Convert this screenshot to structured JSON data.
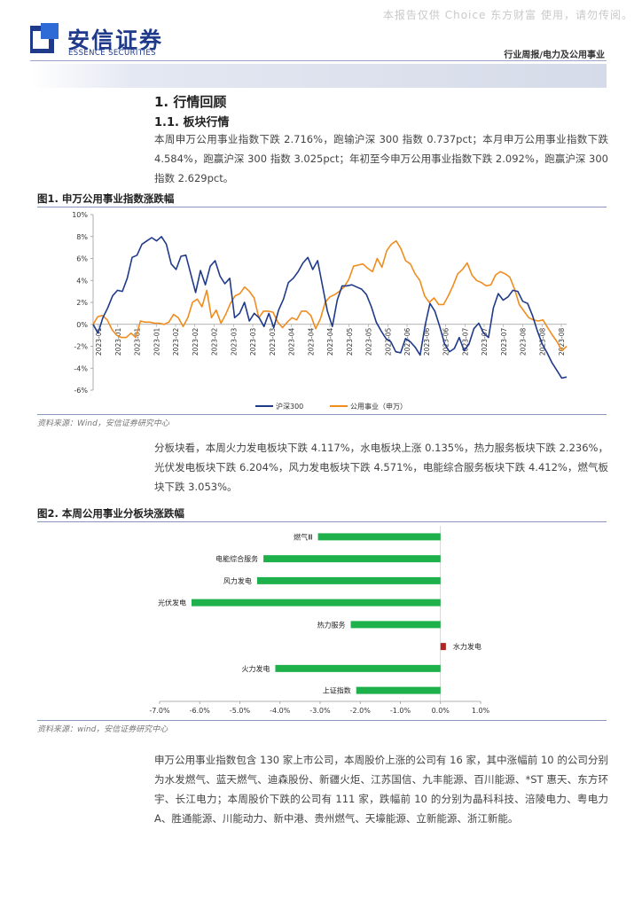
{
  "watermark": "本报告仅供 Choice 东方财富 使用，请勿传阅。",
  "header": {
    "logo_cn": "安信证券",
    "logo_en": "ESSENCE SECURITIES",
    "category": "行业周报/电力及公用事业",
    "brand_color": "#1f3a8a",
    "accent_color": "#2e6bd6"
  },
  "section": {
    "h1": "1. 行情回顾",
    "h2": "1.1. 板块行情",
    "para1": "本周申万公用事业指数下跌 2.716%，跑输沪深 300 指数 0.737pct；本月申万公用事业指数下跌 4.584%，跑赢沪深 300 指数 3.025pct；年初至今申万公用事业指数下跌 2.092%，跑赢沪深 300 指数 2.629pct。",
    "para2": "分板块看，本周火力发电板块下跌 4.117%，水电板块上涨 0.135%，热力服务板块下跌 2.236%，光伏发电板块下跌 6.204%，风力发电板块下跌 4.571%，电能综合服务板块下跌 4.412%，燃气板块下跌 3.053%。",
    "para3": "申万公用事业指数包含 130 家上市公司，本周股价上涨的公司有 16 家，其中涨幅前 10 的公司分别为水发燃气、蓝天燃气、迪森股份、新疆火炬、江苏国信、九丰能源、百川能源、*ST 惠天、东方环宇、长江电力；本周股价下跌的公司有 111 家，跌幅前 10 的分别为晶科科技、涪陵电力、粤电力 A、胜通能源、川能动力、新中港、贵州燃气、天壕能源、立新能源、浙江新能。"
  },
  "fig1": {
    "title": "图1. 申万公用事业指数涨跌幅",
    "source": "资料来源：Wind，安信证券研究中心"
  },
  "fig2": {
    "title": "图2. 本周公用事业分板块涨跌幅",
    "source": "资料来源：wind，安信证券研究中心"
  },
  "chart_data": [
    {
      "type": "line",
      "title": "申万公用事业指数涨跌幅",
      "ylim": [
        -6,
        10
      ],
      "yticks": [
        -6,
        -4,
        -2,
        0,
        2,
        4,
        6,
        8,
        10
      ],
      "ytick_labels": [
        "-6%",
        "-4%",
        "-2%",
        "0%",
        "2%",
        "4%",
        "6%",
        "8%",
        "10%"
      ],
      "x_tick_labels": [
        "2023-01",
        "2023-01",
        "2023-01",
        "2023-01",
        "2023-02",
        "2023-02",
        "2023-02",
        "2023-03",
        "2023-03",
        "2023-03",
        "2023-04",
        "2023-04",
        "2023-04",
        "2023-05",
        "2023-05",
        "2023-05",
        "2023-06",
        "2023-06",
        "2023-06",
        "2023-07",
        "2023-07",
        "2023-07",
        "2023-08",
        "2023-08",
        "2023-08"
      ],
      "series": [
        {
          "name": "沪深300",
          "color": "#1f3a8a",
          "values": [
            0,
            -0.8,
            0.6,
            1.5,
            2.6,
            3.1,
            3.0,
            4.2,
            6.1,
            6.3,
            7.3,
            7.6,
            7.9,
            7.6,
            8.0,
            7.3,
            5.5,
            5.0,
            6.2,
            6.3,
            4.6,
            2.9,
            4.9,
            3.6,
            5.3,
            5.8,
            4.4,
            3.7,
            4.2,
            0.6,
            1.0,
            2.0,
            0.3,
            1.0,
            0.6,
            -0.2,
            1.0,
            -0.3,
            1.3,
            2.3,
            3.8,
            4.2,
            4.8,
            5.6,
            6.1,
            5.0,
            5.8,
            3.5,
            1.2,
            -0.2,
            2.2,
            3.5,
            3.5,
            3.6,
            3.4,
            3.2,
            2.7,
            1.6,
            0.2,
            -0.6,
            -1.3,
            -1.6,
            -2.5,
            -2.6,
            -1.3,
            -1.6,
            -2.1,
            -2.8,
            -0.1,
            1.9,
            1.2,
            -0.2,
            -1.8,
            -2.5,
            -2.2,
            -1.2,
            -2.4,
            -1.8,
            -0.4,
            0.1,
            -0.8,
            -1.2,
            1.5,
            2.8,
            2.2,
            2.5,
            3.1,
            3.0,
            2.1,
            1.9,
            0.8,
            -0.6,
            -1.8,
            -2.6,
            -3.5,
            -4.2,
            -4.9,
            -4.8
          ]
        },
        {
          "name": "公用事业（申万）",
          "color": "#f08c1e",
          "values": [
            0,
            0.7,
            0.8,
            0.4,
            -0.5,
            -1.0,
            -1.2,
            -1.2,
            -0.8,
            -1.2,
            0.3,
            0.2,
            0.2,
            0.1,
            0.1,
            0.0,
            0.2,
            0.9,
            0.6,
            -0.2,
            0.6,
            2.0,
            2.3,
            1.6,
            3.1,
            0.6,
            1.3,
            0.1,
            0.9,
            1.9,
            2.6,
            2.8,
            3.4,
            3.0,
            2.4,
            0.6,
            1.2,
            1.2,
            1.1,
            0.2,
            -0.3,
            0.2,
            0.6,
            0.4,
            1.2,
            1.2,
            0.8,
            -0.4,
            0.5,
            2.0,
            2.5,
            2.7,
            3.0,
            3.4,
            4.1,
            5.3,
            5.4,
            5.5,
            5.1,
            4.8,
            6.0,
            5.2,
            6.7,
            7.3,
            7.6,
            6.9,
            5.8,
            5.5,
            4.6,
            4.0,
            2.6,
            2.0,
            2.4,
            1.8,
            1.8,
            2.6,
            3.5,
            4.6,
            5.0,
            5.6,
            4.5,
            4.0,
            3.8,
            3.5,
            3.6,
            4.5,
            4.8,
            4.6,
            4.3,
            3.2,
            1.8,
            1.2,
            0.6,
            0.4,
            0.3,
            0.4,
            -0.3,
            -1.0,
            -1.6,
            -2.4,
            -2.0
          ]
        }
      ],
      "legend": [
        "沪深300",
        "公用事业（申万）"
      ],
      "legend_position": "bottom"
    },
    {
      "type": "bar",
      "orientation": "horizontal",
      "title": "本周公用事业分板块涨跌幅",
      "categories": [
        "燃气Ⅲ",
        "电能综合服务",
        "风力发电",
        "光伏发电",
        "热力服务",
        "水力发电",
        "火力发电",
        "上证指数"
      ],
      "values": [
        -3.053,
        -4.412,
        -4.571,
        -6.204,
        -2.236,
        0.135,
        -4.117,
        -2.1
      ],
      "bar_colors": [
        "#1eb04b",
        "#1eb04b",
        "#1eb04b",
        "#1eb04b",
        "#1eb04b",
        "#b22222",
        "#1eb04b",
        "#1eb04b"
      ],
      "xlim": [
        -7,
        1
      ],
      "xticks": [
        -7,
        -6,
        -5,
        -4,
        -3,
        -2,
        -1,
        0,
        1
      ],
      "xtick_labels": [
        "-7.0%",
        "-6.0%",
        "-5.0%",
        "-4.0%",
        "-3.0%",
        "-2.0%",
        "-1.0%",
        "0.0%",
        "1.0%"
      ]
    }
  ]
}
